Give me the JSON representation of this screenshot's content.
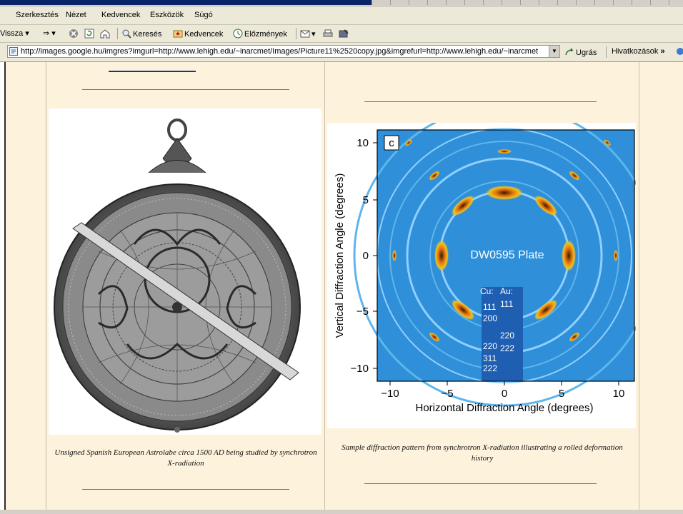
{
  "menu": [
    "Szerkesztés",
    "Nézet",
    "Kedvencek",
    "Eszközök",
    "Súgó"
  ],
  "toolbar": {
    "back": "Vissza",
    "search": "Keresés",
    "favorites": "Kedvencek",
    "history": "Előzmények"
  },
  "address": {
    "url": "http://images.google.hu/imgres?imgurl=http://www.lehigh.edu/~inarcmet/Images/Picture11%2520copy.jpg&imgrefurl=http://www.lehigh.edu/~inarcmet",
    "go": "Ugrás",
    "links": "Hivatkozások"
  },
  "content": {
    "left_caption": "Unsigned Spanish European Astrolabe circa 1500 AD being studied by synchrotron X-radiation",
    "right_caption": "Sample diffraction pattern from synchrotron X-radiation illustrating a rolled deformation history"
  },
  "figure": {
    "panel_label": "c",
    "plate_label": "DW0595 Plate",
    "cu_label": "Cu:",
    "au_label": "Au:",
    "peaks": [
      "111",
      "111",
      "200",
      "220",
      "220",
      "222",
      "311",
      "222"
    ],
    "xlabel": "Horizontal Diffraction Angle (degrees)",
    "ylabel": "Vertical Diffraction Angle (degrees)",
    "xticks": [
      "−10",
      "−5",
      "0",
      "5",
      "10"
    ],
    "yticks": [
      "10",
      "5",
      "0",
      "−5",
      "−10"
    ]
  },
  "colors": {
    "page_bg": "#fdf3dc",
    "chrome": "#ece9d8",
    "diffraction_blue": "#2f8fd8",
    "ring_orange": "#d96a10"
  }
}
